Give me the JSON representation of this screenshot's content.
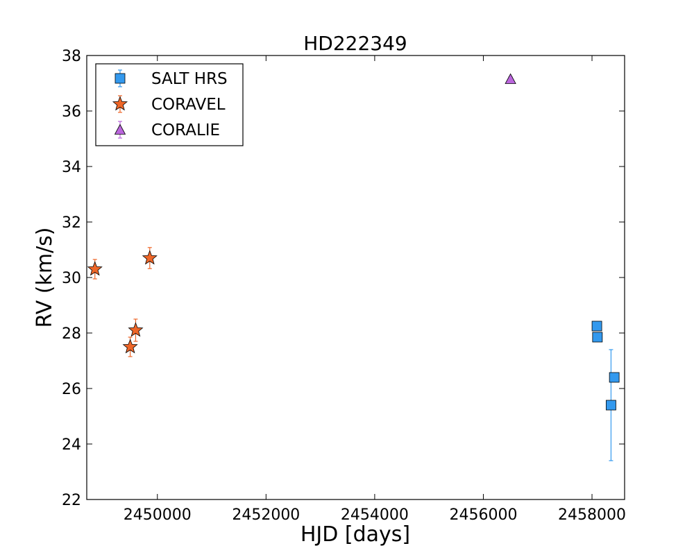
{
  "chart_data": {
    "type": "scatter",
    "title": "HD222349",
    "xlabel": "HJD [days]",
    "ylabel": "RV (km/s)",
    "xlim": [
      2448700,
      2458600
    ],
    "ylim": [
      22,
      38
    ],
    "xticks": [
      2450000,
      2452000,
      2454000,
      2456000,
      2458000
    ],
    "xtick_labels": [
      "2450000",
      "2452000",
      "2454000",
      "2456000",
      "2458000"
    ],
    "yticks": [
      22,
      24,
      26,
      28,
      30,
      32,
      34,
      36,
      38
    ],
    "ytick_labels": [
      "22",
      "24",
      "26",
      "28",
      "30",
      "32",
      "34",
      "36",
      "38"
    ],
    "grid": false,
    "legend_position": "top-left",
    "series": [
      {
        "name": "SALT HRS",
        "marker": "square",
        "color": "#3399ee",
        "points": [
          {
            "x": 2458090,
            "y": 28.25,
            "err": 0.0
          },
          {
            "x": 2458100,
            "y": 27.85,
            "err": 0.0
          },
          {
            "x": 2458350,
            "y": 25.4,
            "err": 2.0
          },
          {
            "x": 2458410,
            "y": 26.4,
            "err": 0.0
          }
        ]
      },
      {
        "name": "CORAVEL",
        "marker": "star",
        "color": "#ee6628",
        "points": [
          {
            "x": 2448850,
            "y": 30.3,
            "err": 0.35
          },
          {
            "x": 2449500,
            "y": 27.5,
            "err": 0.35
          },
          {
            "x": 2449600,
            "y": 28.1,
            "err": 0.4
          },
          {
            "x": 2449860,
            "y": 30.7,
            "err": 0.38
          }
        ]
      },
      {
        "name": "CORALIE",
        "marker": "triangle",
        "color": "#bb66dd",
        "points": [
          {
            "x": 2456500,
            "y": 37.15,
            "err": 0.08
          }
        ]
      }
    ]
  }
}
